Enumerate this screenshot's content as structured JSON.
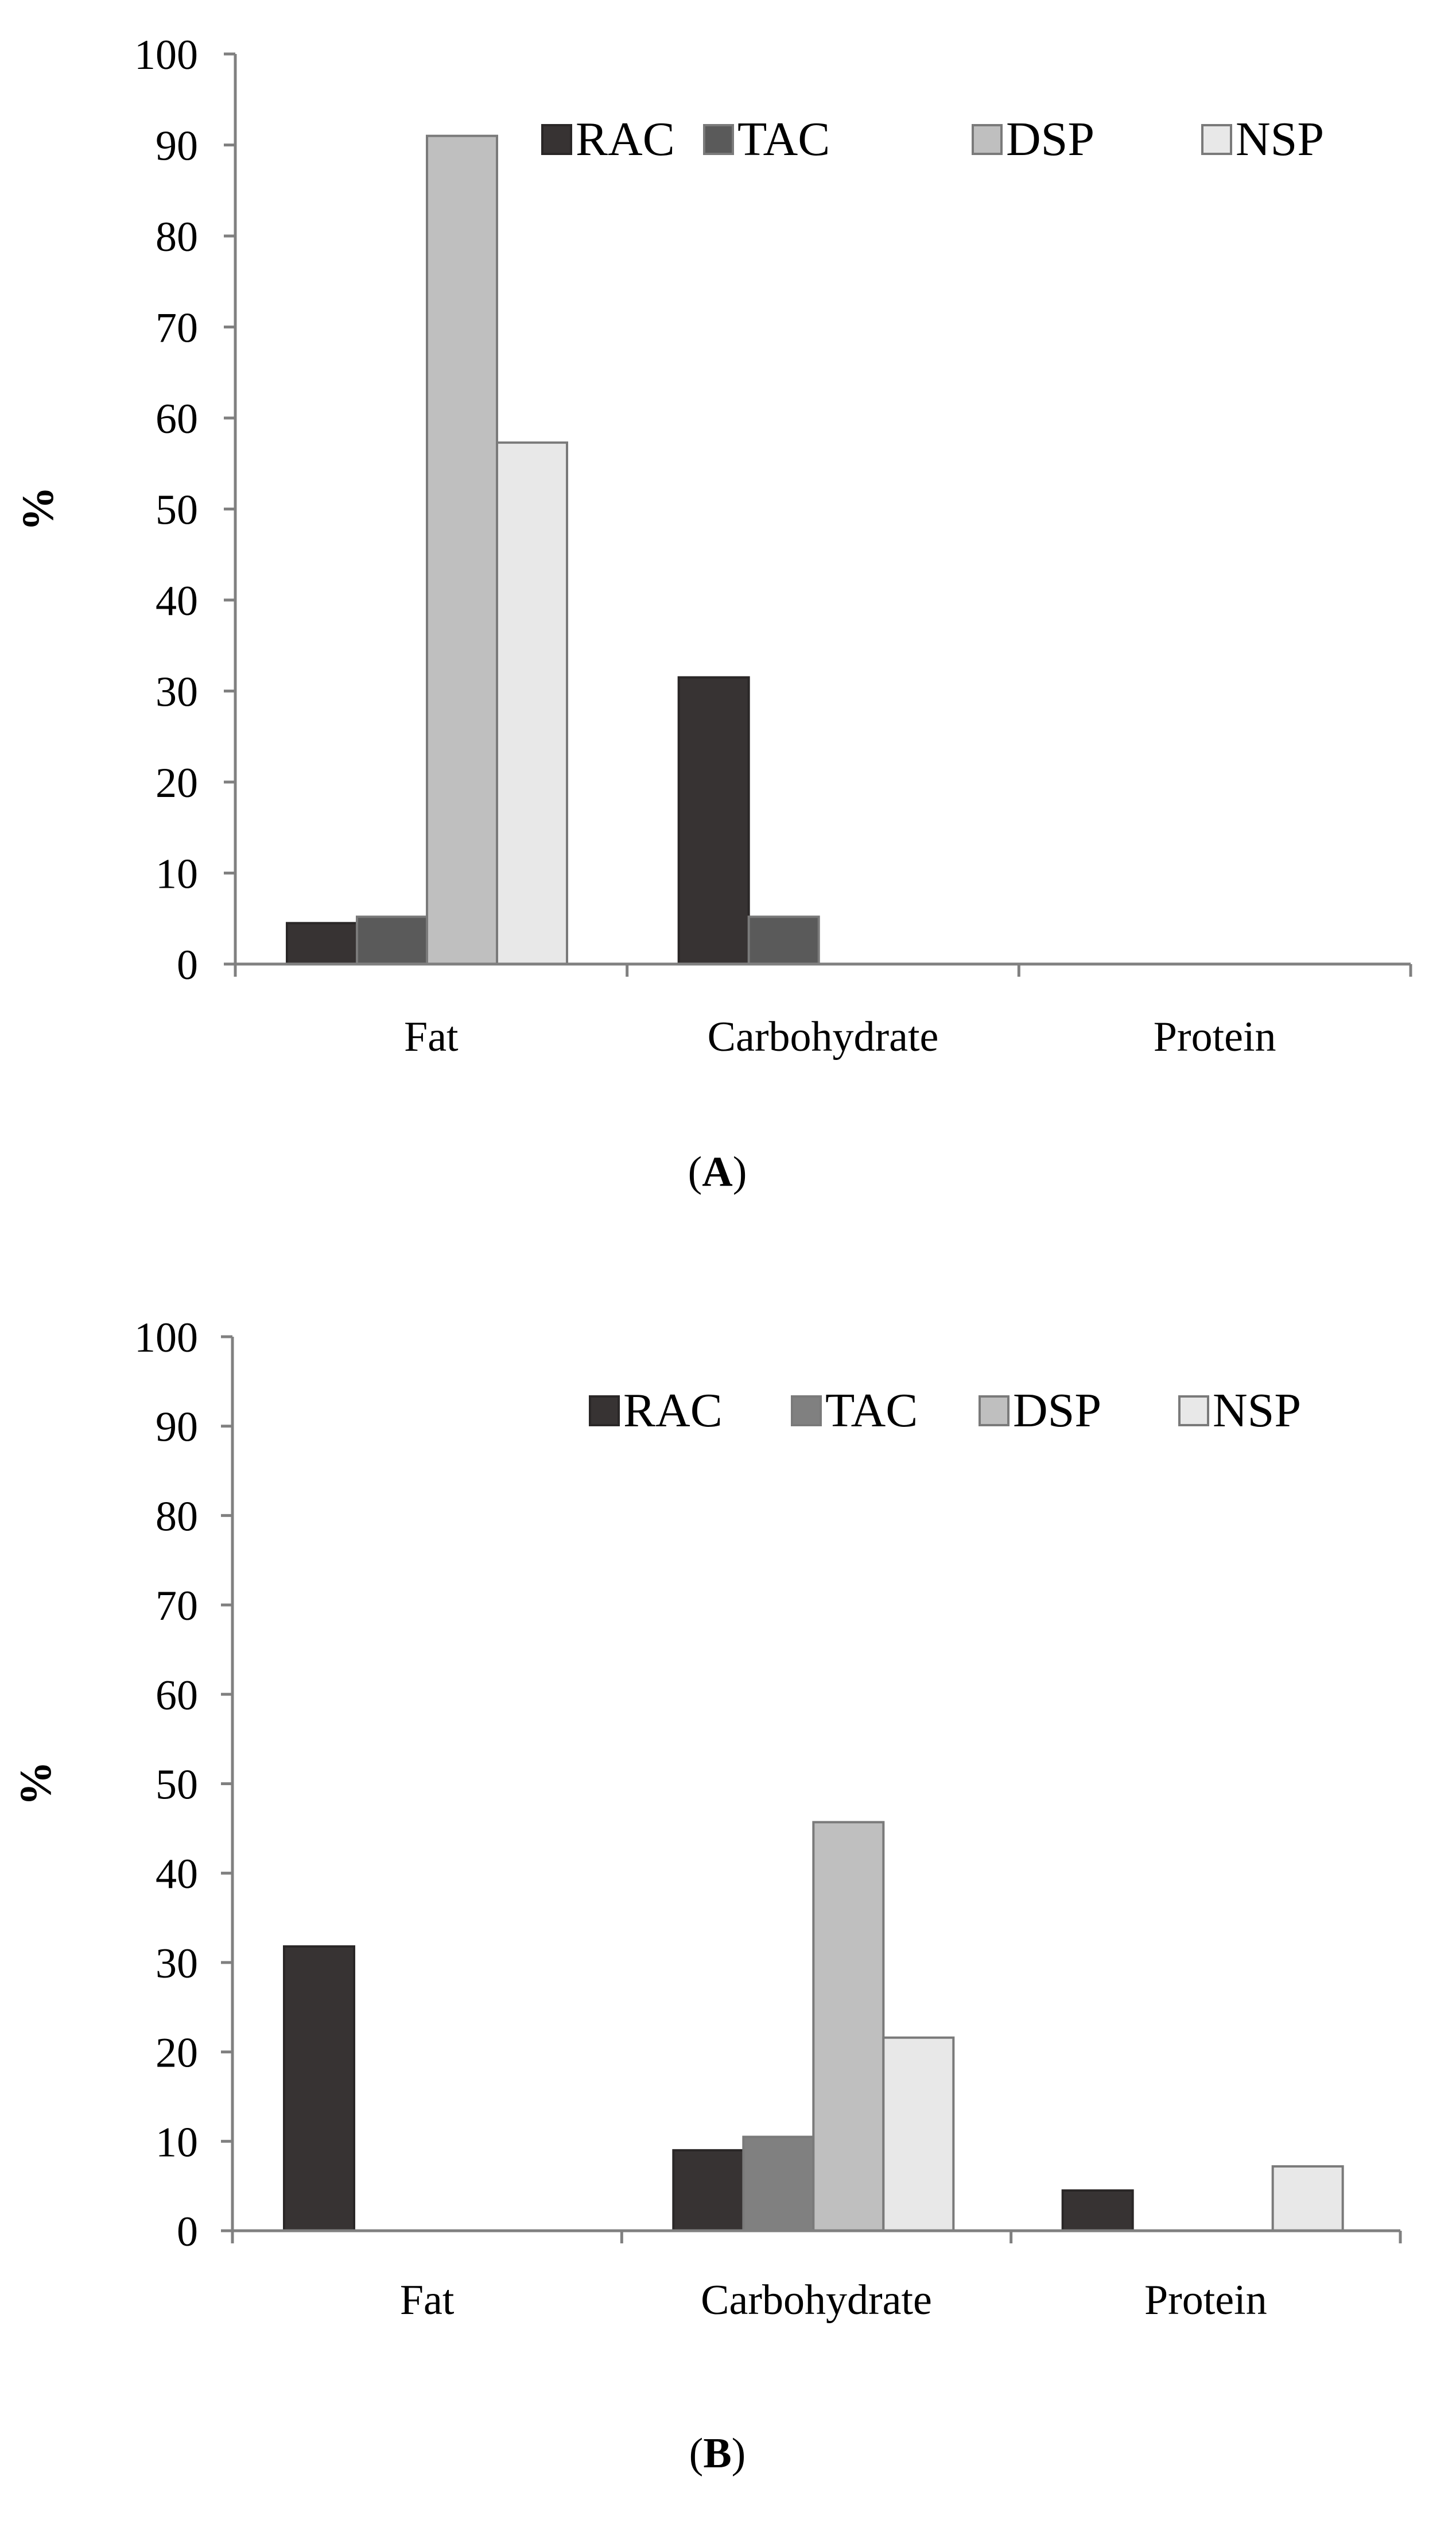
{
  "colors": {
    "RAC": "#373333",
    "TAC_A": "#5a5a5a",
    "TAC_B": "#808080",
    "DSP": "#bfbfbf",
    "NSP": "#e8e8e8",
    "axis": "#808080"
  },
  "chart_data": [
    {
      "type": "bar",
      "panel": "A",
      "panel_label": {
        "open": "(",
        "letter": "A",
        "close": ")"
      },
      "categories": [
        "Fat",
        "Carbohydrate",
        "Protein"
      ],
      "series": [
        {
          "name": "RAC",
          "values": [
            4.5,
            31.5,
            0
          ]
        },
        {
          "name": "TAC",
          "values": [
            5.2,
            5.2,
            0
          ]
        },
        {
          "name": "DSP",
          "values": [
            91,
            0,
            0
          ]
        },
        {
          "name": "NSP",
          "values": [
            57.3,
            0,
            0
          ]
        }
      ],
      "ylabel": "%",
      "ylim": [
        0,
        100
      ],
      "yticks": [
        "0",
        "10",
        "20",
        "30",
        "40",
        "50",
        "60",
        "70",
        "80",
        "90",
        "100"
      ],
      "legend": [
        "RAC",
        "TAC",
        "DSP",
        "NSP"
      ]
    },
    {
      "type": "bar",
      "panel": "B",
      "panel_label": {
        "open": "(",
        "letter": "B",
        "close": ")"
      },
      "categories": [
        "Fat",
        "Carbohydrate",
        "Protein"
      ],
      "series": [
        {
          "name": "RAC",
          "values": [
            31.8,
            9,
            4.5
          ]
        },
        {
          "name": "TAC",
          "values": [
            0,
            10.5,
            0
          ]
        },
        {
          "name": "DSP",
          "values": [
            0,
            45.7,
            0
          ]
        },
        {
          "name": "NSP",
          "values": [
            0,
            21.6,
            7.2
          ]
        }
      ],
      "ylabel": "%",
      "ylim": [
        0,
        100
      ],
      "yticks": [
        "0",
        "10",
        "20",
        "30",
        "40",
        "50",
        "60",
        "70",
        "80",
        "90",
        "100"
      ],
      "legend": [
        "RAC",
        "TAC",
        "DSP",
        "NSP"
      ]
    }
  ]
}
